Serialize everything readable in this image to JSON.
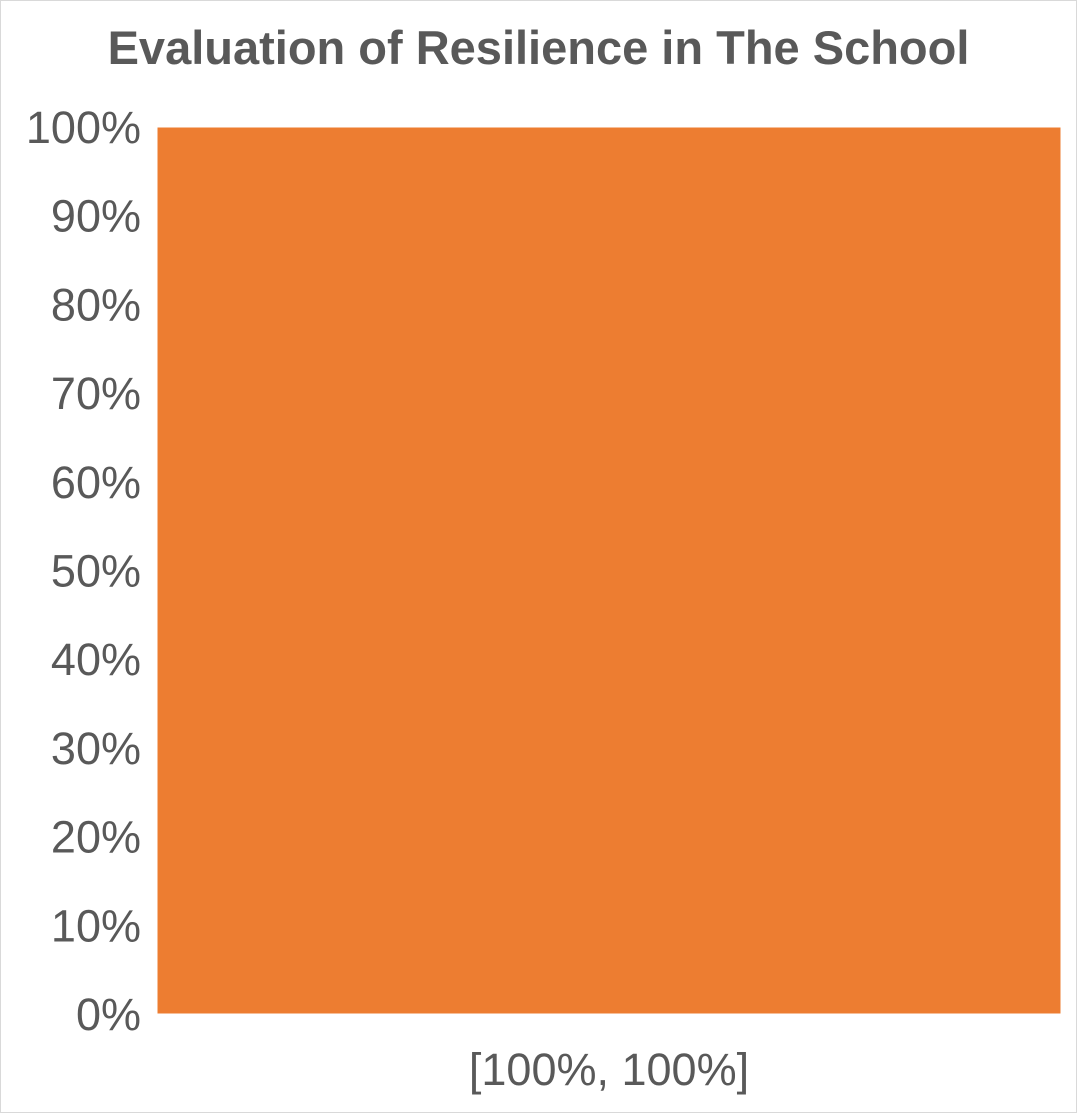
{
  "chart_data": {
    "type": "bar",
    "title": "Evaluation of Resilience in The  School",
    "categories": [
      "[100%, 100%]"
    ],
    "series": [
      {
        "values": [
          100
        ]
      }
    ],
    "yticks": [
      "0%",
      "10%",
      "20%",
      "30%",
      "40%",
      "50%",
      "60%",
      "70%",
      "80%",
      "90%",
      "100%"
    ],
    "ylim": [
      0,
      100
    ],
    "xlabel": "",
    "ylabel": "",
    "grid": false,
    "legend": "none",
    "colors": {
      "bar": "#ED7D31",
      "text": "#595959",
      "border": "#D9D9D9"
    }
  }
}
